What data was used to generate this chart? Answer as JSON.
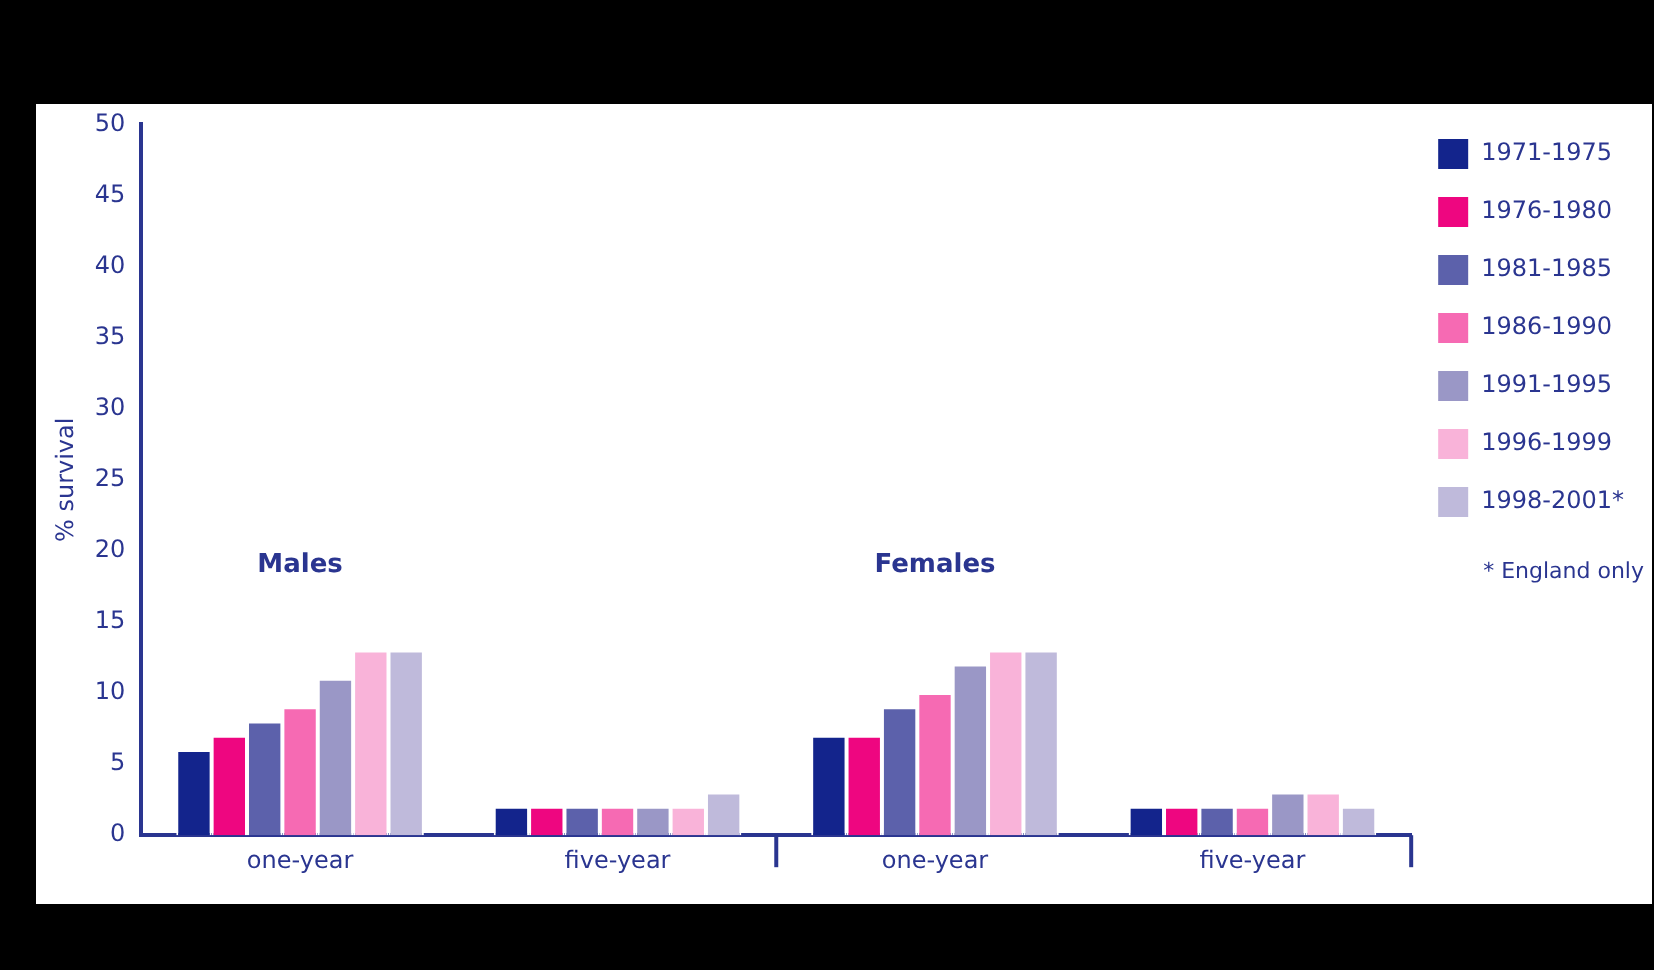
{
  "chart_data": {
    "type": "bar",
    "ylabel": "% survival",
    "categories": [
      "one-year",
      "five-year",
      "one-year",
      "five-year"
    ],
    "series": [
      {
        "name": "1971-1975",
        "color": "#13248c",
        "values": [
          6,
          2,
          7,
          2
        ]
      },
      {
        "name": "1976-1980",
        "color": "#ee0680",
        "values": [
          7,
          2,
          7,
          2
        ]
      },
      {
        "name": "1981-1985",
        "color": "#5c61ab",
        "values": [
          8,
          2,
          9,
          2
        ]
      },
      {
        "name": "1986-1990",
        "color": "#f66ab3",
        "values": [
          9,
          2,
          10,
          2
        ]
      },
      {
        "name": "1991-1995",
        "color": "#9a97c6",
        "values": [
          11,
          2,
          12,
          3
        ]
      },
      {
        "name": "1996-1999",
        "color": "#f9b3d9",
        "values": [
          13,
          2,
          13,
          3
        ]
      },
      {
        "name": "1998-2001*",
        "color": "#bfbadb",
        "values": [
          13,
          3,
          13,
          2
        ]
      }
    ],
    "ylim": [
      0,
      50
    ],
    "yticks": [
      0,
      5,
      10,
      15,
      20,
      25,
      30,
      35,
      40,
      45,
      50
    ],
    "grid": false,
    "legend": "top right",
    "annotations": [
      "Males",
      "Females",
      "* England only"
    ]
  }
}
